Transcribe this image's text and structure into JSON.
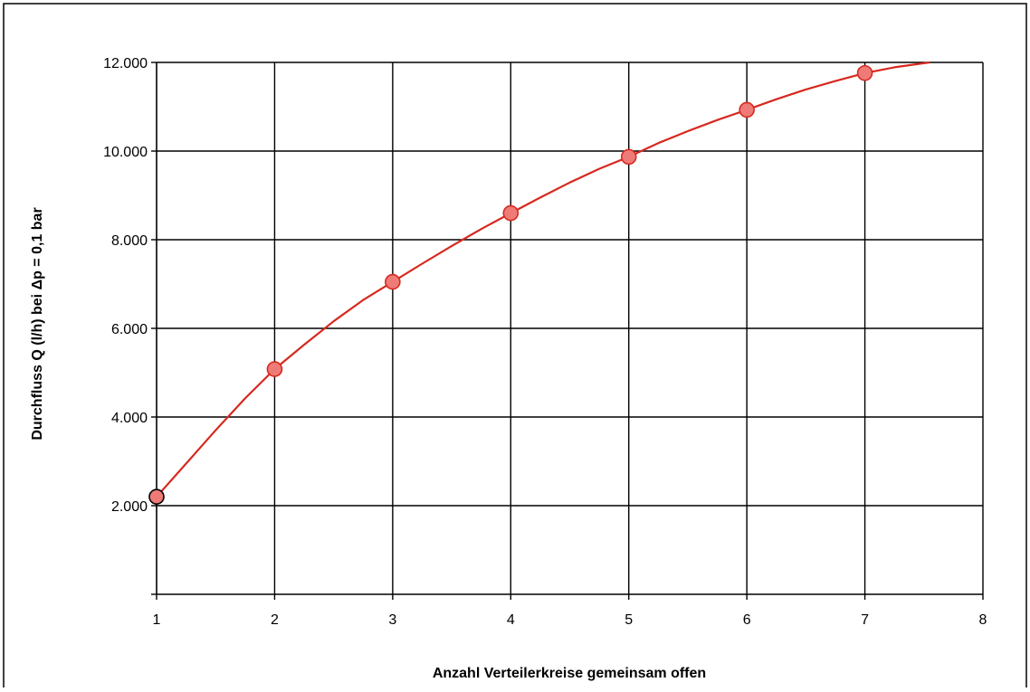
{
  "chart_data": {
    "type": "line",
    "title": "",
    "xlabel": "Anzahl Verteilerkreise gemeinsam offen",
    "ylabel": "Durchfluss Q (l/h) bei Δp = 0,1 bar",
    "xlim": [
      1,
      8
    ],
    "ylim": [
      0,
      12000
    ],
    "x_ticks": [
      1,
      2,
      3,
      4,
      5,
      6,
      7,
      8
    ],
    "x_tick_labels": [
      "1",
      "2",
      "3",
      "4",
      "5",
      "6",
      "7",
      "8"
    ],
    "y_ticks": [
      2000,
      4000,
      6000,
      8000,
      10000,
      12000
    ],
    "y_tick_labels": [
      "2.000",
      "4.000",
      "6.000",
      "8.000",
      "10.000",
      "12.000"
    ],
    "grid": true,
    "line_color": "#d7291f",
    "marker_color": "#ee7b78",
    "first_marker_edge_color": "#000000",
    "marker_edge_color": "#d7291f",
    "series": [
      {
        "markers": [
          {
            "x": 1,
            "y": 2200
          },
          {
            "x": 2,
            "y": 5080
          },
          {
            "x": 3,
            "y": 7050
          },
          {
            "x": 4,
            "y": 8600
          },
          {
            "x": 5,
            "y": 9870
          },
          {
            "x": 6,
            "y": 10930
          },
          {
            "x": 7,
            "y": 11760
          }
        ],
        "curve": [
          {
            "x": 1,
            "y": 2200
          },
          {
            "x": 1.25,
            "y": 2950
          },
          {
            "x": 1.5,
            "y": 3700
          },
          {
            "x": 1.75,
            "y": 4420
          },
          {
            "x": 2,
            "y": 5080
          },
          {
            "x": 2.25,
            "y": 5630
          },
          {
            "x": 2.5,
            "y": 6160
          },
          {
            "x": 2.75,
            "y": 6640
          },
          {
            "x": 3,
            "y": 7050
          },
          {
            "x": 3.25,
            "y": 7460
          },
          {
            "x": 3.5,
            "y": 7860
          },
          {
            "x": 3.75,
            "y": 8240
          },
          {
            "x": 4,
            "y": 8600
          },
          {
            "x": 4.25,
            "y": 8950
          },
          {
            "x": 4.5,
            "y": 9290
          },
          {
            "x": 4.75,
            "y": 9600
          },
          {
            "x": 5,
            "y": 9870
          },
          {
            "x": 5.25,
            "y": 10180
          },
          {
            "x": 5.5,
            "y": 10450
          },
          {
            "x": 5.75,
            "y": 10700
          },
          {
            "x": 6,
            "y": 10930
          },
          {
            "x": 6.25,
            "y": 11170
          },
          {
            "x": 6.5,
            "y": 11390
          },
          {
            "x": 6.75,
            "y": 11580
          },
          {
            "x": 7,
            "y": 11760
          },
          {
            "x": 7.25,
            "y": 11890
          },
          {
            "x": 7.55,
            "y": 12000
          }
        ]
      }
    ]
  }
}
